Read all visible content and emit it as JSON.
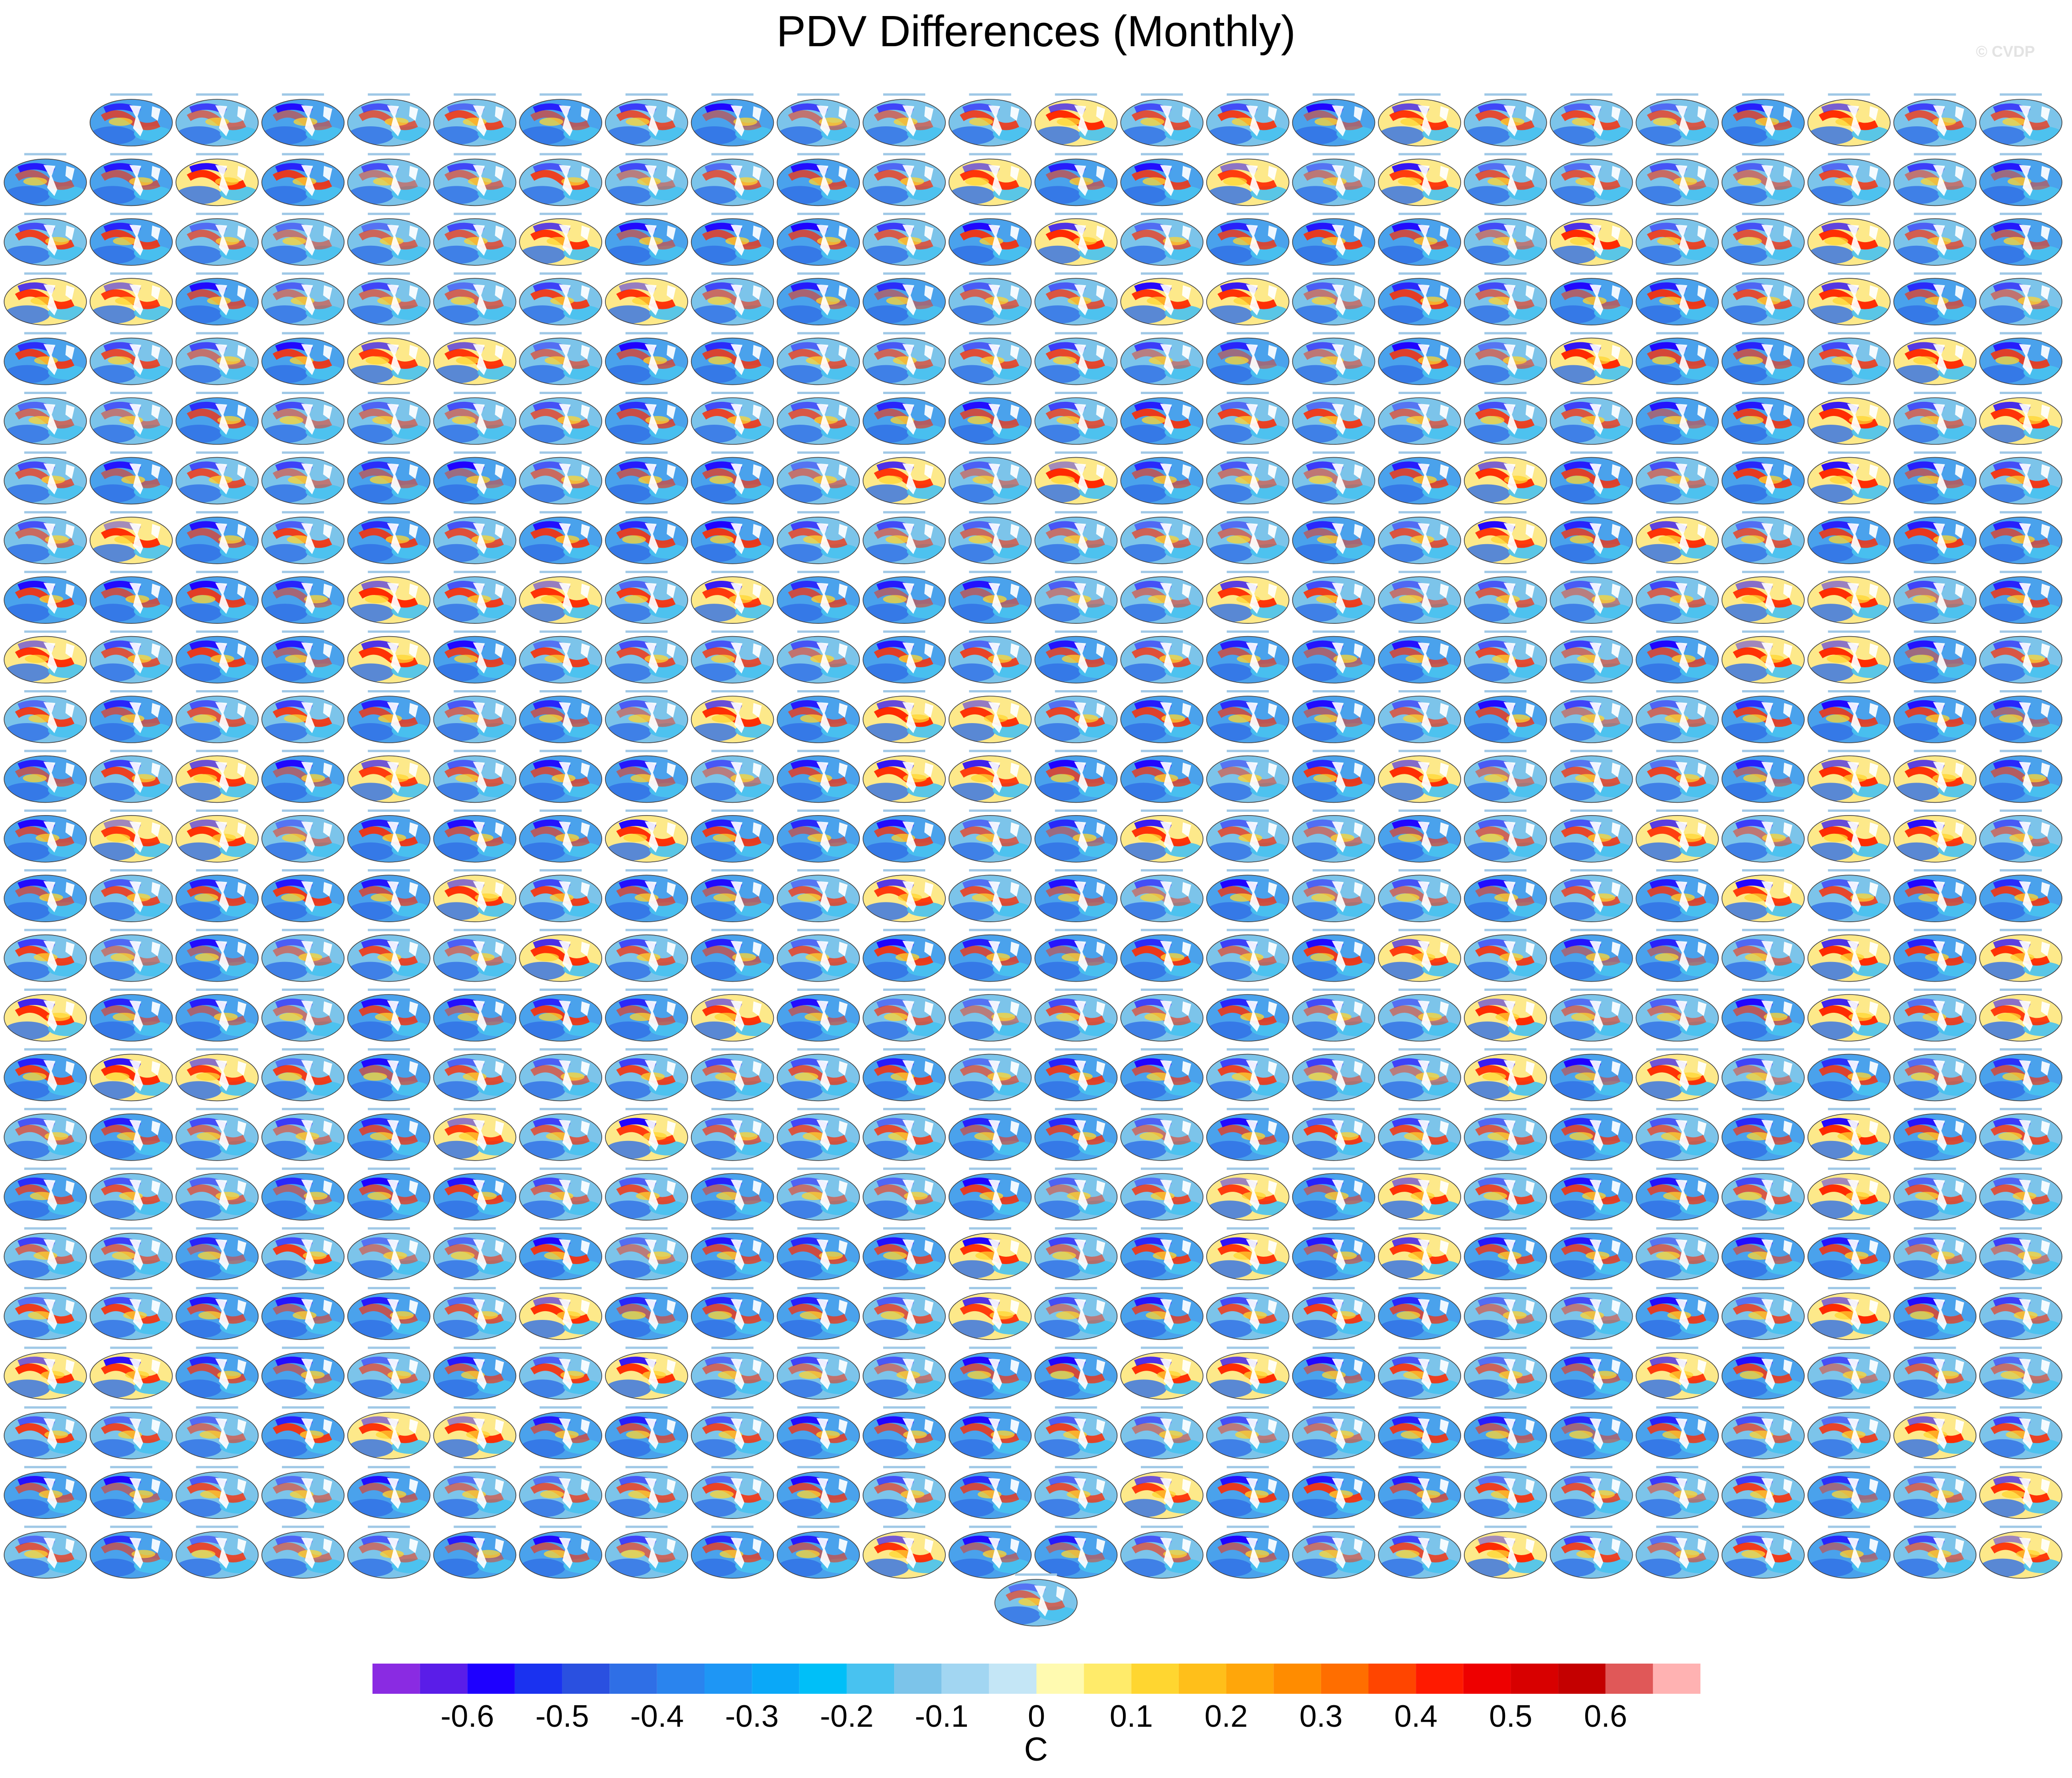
{
  "title": "PDV Differences (Monthly)",
  "watermark": "© CVDP",
  "chart_data": {
    "type": "heatmap",
    "title": "PDV Differences (Monthly)",
    "panel_grid": {
      "columns": 24,
      "rows": 25,
      "first_row_panels": 23,
      "extra_bottom_panels": 1,
      "total_panels": 576,
      "note": "each panel is a small global map of SST pattern differences; panel subtitles are not legible"
    },
    "colorbar": {
      "label": "C",
      "tick_labels": [
        "-0.6",
        "-0.5",
        "-0.4",
        "-0.3",
        "-0.2",
        "-0.1",
        "0",
        "0.1",
        "0.2",
        "0.3",
        "0.4",
        "0.5",
        "0.6"
      ],
      "colors": [
        "#8a2be2",
        "#5a1de8",
        "#1e00ff",
        "#1a32f0",
        "#2a50e0",
        "#2f6fe6",
        "#2a84ee",
        "#1e96f5",
        "#0aa8f8",
        "#00bff8",
        "#48c2f0",
        "#7cc4ea",
        "#a2d6f2",
        "#c4e6f6",
        "#fffab0",
        "#ffeb6a",
        "#ffd630",
        "#ffbf1a",
        "#ffa60a",
        "#ff8c00",
        "#ff6e00",
        "#ff4500",
        "#ff1a00",
        "#ee0000",
        "#d80000",
        "#c40000",
        "#e05858",
        "#ffb2b2"
      ]
    }
  }
}
